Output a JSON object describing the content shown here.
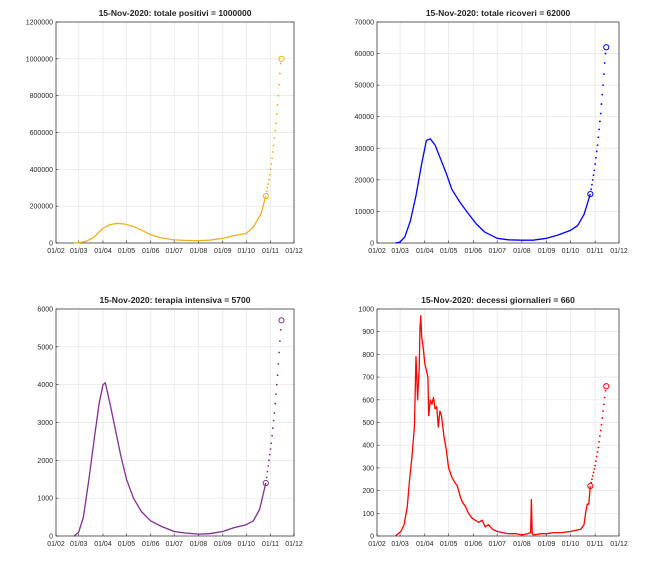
{
  "chart_data": [
    {
      "type": "line",
      "title": "15-Nov-2020: totale positivi = 1000000",
      "color": "#edb120",
      "xticks": [
        "01/02",
        "01/03",
        "01/04",
        "01/05",
        "01/06",
        "01/07",
        "01/08",
        "01/09",
        "01/10",
        "01/11",
        "01/12"
      ],
      "yticks": [
        "0",
        "200000",
        "400000",
        "600000",
        "800000",
        "1000000",
        "1200000"
      ],
      "ylim": [
        0,
        1200000
      ],
      "grid": true,
      "series": [
        {
          "style": "solid",
          "x": [
            "2020-02-24",
            "2020-03-01",
            "2020-03-10",
            "2020-03-20",
            "2020-04-01",
            "2020-04-10",
            "2020-04-19",
            "2020-04-28",
            "2020-05-10",
            "2020-05-20",
            "2020-06-01",
            "2020-06-15",
            "2020-07-01",
            "2020-07-15",
            "2020-08-01",
            "2020-08-15",
            "2020-09-01",
            "2020-09-15",
            "2020-10-01",
            "2020-10-10",
            "2020-10-20",
            "2020-10-26"
          ],
          "y": [
            0,
            1500,
            8000,
            30000,
            80000,
            100000,
            107000,
            103000,
            90000,
            70000,
            45000,
            27000,
            17000,
            14000,
            13000,
            15000,
            25000,
            40000,
            52000,
            85000,
            160000,
            255000
          ]
        },
        {
          "style": "dotted",
          "x": [
            "2020-10-27",
            "2020-10-28",
            "2020-10-29",
            "2020-10-30",
            "2020-10-31",
            "2020-11-01",
            "2020-11-02",
            "2020-11-03",
            "2020-11-04",
            "2020-11-05",
            "2020-11-06",
            "2020-11-07",
            "2020-11-08",
            "2020-11-09",
            "2020-11-10",
            "2020-11-11",
            "2020-11-12",
            "2020-11-13",
            "2020-11-14"
          ],
          "y": [
            280000,
            300000,
            320000,
            345000,
            370000,
            400000,
            430000,
            460000,
            495000,
            530000,
            570000,
            610000,
            650000,
            700000,
            750000,
            800000,
            860000,
            920000,
            975000
          ]
        }
      ],
      "markers": [
        {
          "x": "2020-10-26",
          "y": 255000
        },
        {
          "x": "2020-11-15",
          "y": 1000000
        }
      ]
    },
    {
      "type": "line",
      "title": "15-Nov-2020: totale ricoveri = 62000",
      "color": "#0000ff",
      "xticks": [
        "01/02",
        "01/03",
        "01/04",
        "01/05",
        "01/06",
        "01/07",
        "01/08",
        "01/09",
        "01/10",
        "01/11",
        "01/12"
      ],
      "yticks": [
        "0",
        "10000",
        "20000",
        "30000",
        "40000",
        "50000",
        "60000",
        "70000"
      ],
      "ylim": [
        0,
        70000
      ],
      "grid": true,
      "series": [
        {
          "style": "solid",
          "x": [
            "2020-02-24",
            "2020-03-01",
            "2020-03-07",
            "2020-03-14",
            "2020-03-21",
            "2020-03-28",
            "2020-04-03",
            "2020-04-08",
            "2020-04-14",
            "2020-04-21",
            "2020-04-28",
            "2020-05-05",
            "2020-05-15",
            "2020-05-25",
            "2020-06-05",
            "2020-06-15",
            "2020-07-01",
            "2020-07-15",
            "2020-08-01",
            "2020-08-15",
            "2020-09-01",
            "2020-09-15",
            "2020-10-01",
            "2020-10-10",
            "2020-10-18",
            "2020-10-26"
          ],
          "y": [
            0,
            300,
            2000,
            7000,
            15000,
            25000,
            32500,
            33000,
            31000,
            26500,
            22000,
            17000,
            13000,
            9500,
            6000,
            3500,
            1500,
            1000,
            900,
            900,
            1500,
            2500,
            4000,
            5500,
            9000,
            15500
          ]
        },
        {
          "style": "dotted",
          "x": [
            "2020-10-27",
            "2020-10-28",
            "2020-10-29",
            "2020-10-30",
            "2020-10-31",
            "2020-11-01",
            "2020-11-02",
            "2020-11-03",
            "2020-11-04",
            "2020-11-05",
            "2020-11-06",
            "2020-11-07",
            "2020-11-08",
            "2020-11-09",
            "2020-11-10",
            "2020-11-11",
            "2020-11-12",
            "2020-11-13",
            "2020-11-14"
          ],
          "y": [
            17000,
            18500,
            20000,
            21500,
            23000,
            25000,
            27000,
            29000,
            31000,
            33500,
            36000,
            38500,
            41000,
            44000,
            47000,
            50000,
            53500,
            57000,
            60000
          ]
        }
      ],
      "markers": [
        {
          "x": "2020-10-26",
          "y": 15500
        },
        {
          "x": "2020-11-15",
          "y": 62000
        }
      ]
    },
    {
      "type": "line",
      "title": "15-Nov-2020: terapia intensiva = 5700",
      "color": "#7e2f8e",
      "xticks": [
        "01/02",
        "01/03",
        "01/04",
        "01/05",
        "01/06",
        "01/07",
        "01/08",
        "01/09",
        "01/10",
        "01/11",
        "01/12"
      ],
      "yticks": [
        "0",
        "1000",
        "2000",
        "3000",
        "4000",
        "5000",
        "6000"
      ],
      "ylim": [
        0,
        6000
      ],
      "grid": true,
      "series": [
        {
          "style": "solid",
          "x": [
            "2020-02-24",
            "2020-03-01",
            "2020-03-07",
            "2020-03-14",
            "2020-03-21",
            "2020-03-27",
            "2020-04-01",
            "2020-04-04",
            "2020-04-10",
            "2020-04-17",
            "2020-04-24",
            "2020-05-01",
            "2020-05-10",
            "2020-05-20",
            "2020-06-01",
            "2020-06-15",
            "2020-07-01",
            "2020-07-15",
            "2020-08-01",
            "2020-08-15",
            "2020-09-01",
            "2020-09-15",
            "2020-10-01",
            "2020-10-10",
            "2020-10-18",
            "2020-10-26"
          ],
          "y": [
            0,
            100,
            500,
            1500,
            2600,
            3500,
            4000,
            4050,
            3500,
            2800,
            2100,
            1500,
            1000,
            650,
            400,
            250,
            120,
            80,
            50,
            60,
            120,
            220,
            300,
            400,
            700,
            1400
          ]
        },
        {
          "style": "dotted",
          "x": [
            "2020-10-27",
            "2020-10-28",
            "2020-10-29",
            "2020-10-30",
            "2020-10-31",
            "2020-11-01",
            "2020-11-02",
            "2020-11-03",
            "2020-11-04",
            "2020-11-05",
            "2020-11-06",
            "2020-11-07",
            "2020-11-08",
            "2020-11-09",
            "2020-11-10",
            "2020-11-11",
            "2020-11-12",
            "2020-11-13",
            "2020-11-14"
          ],
          "y": [
            1550,
            1700,
            1850,
            2000,
            2150,
            2300,
            2450,
            2650,
            2850,
            3050,
            3250,
            3500,
            3750,
            4000,
            4250,
            4550,
            4850,
            5150,
            5450
          ]
        }
      ],
      "markers": [
        {
          "x": "2020-10-26",
          "y": 1400
        },
        {
          "x": "2020-11-15",
          "y": 5700
        }
      ]
    },
    {
      "type": "line",
      "title": "15-Nov-2020: decessi giornalieri = 660",
      "color": "#ff0000",
      "xticks": [
        "01/02",
        "01/03",
        "01/04",
        "01/05",
        "01/06",
        "01/07",
        "01/08",
        "01/09",
        "01/10",
        "01/11",
        "01/12"
      ],
      "yticks": [
        "0",
        "100",
        "200",
        "300",
        "400",
        "500",
        "600",
        "700",
        "800",
        "900",
        "1000"
      ],
      "ylim": [
        0,
        1000
      ],
      "grid": true,
      "series": [
        {
          "style": "solid",
          "x": [
            "2020-02-24",
            "2020-03-02",
            "2020-03-06",
            "2020-03-10",
            "2020-03-13",
            "2020-03-16",
            "2020-03-19",
            "2020-03-21",
            "2020-03-23",
            "2020-03-25",
            "2020-03-26",
            "2020-03-27",
            "2020-03-28",
            "2020-03-30",
            "2020-04-01",
            "2020-04-03",
            "2020-04-05",
            "2020-04-06",
            "2020-04-08",
            "2020-04-10",
            "2020-04-12",
            "2020-04-14",
            "2020-04-16",
            "2020-04-18",
            "2020-04-20",
            "2020-04-22",
            "2020-04-25",
            "2020-04-28",
            "2020-05-01",
            "2020-05-05",
            "2020-05-08",
            "2020-05-12",
            "2020-05-15",
            "2020-05-18",
            "2020-05-22",
            "2020-05-26",
            "2020-05-30",
            "2020-06-03",
            "2020-06-08",
            "2020-06-12",
            "2020-06-16",
            "2020-06-20",
            "2020-06-25",
            "2020-07-01",
            "2020-07-08",
            "2020-07-15",
            "2020-07-25",
            "2020-08-01",
            "2020-08-08",
            "2020-08-12",
            "2020-08-13",
            "2020-08-14",
            "2020-08-16",
            "2020-08-25",
            "2020-09-01",
            "2020-09-10",
            "2020-09-20",
            "2020-10-01",
            "2020-10-08",
            "2020-10-14",
            "2020-10-18",
            "2020-10-20",
            "2020-10-22",
            "2020-10-24",
            "2020-10-26"
          ],
          "y": [
            0,
            20,
            50,
            130,
            250,
            350,
            480,
            790,
            600,
            740,
            920,
            970,
            880,
            830,
            760,
            730,
            700,
            530,
            600,
            580,
            610,
            560,
            570,
            480,
            550,
            530,
            440,
            380,
            300,
            260,
            240,
            220,
            180,
            150,
            130,
            100,
            80,
            70,
            60,
            70,
            40,
            50,
            30,
            20,
            15,
            10,
            10,
            5,
            10,
            15,
            160,
            10,
            5,
            10,
            10,
            15,
            15,
            20,
            25,
            30,
            50,
            100,
            140,
            140,
            220
          ]
        },
        {
          "style": "dotted",
          "x": [
            "2020-10-27",
            "2020-10-28",
            "2020-10-29",
            "2020-10-30",
            "2020-10-31",
            "2020-11-01",
            "2020-11-02",
            "2020-11-03",
            "2020-11-04",
            "2020-11-05",
            "2020-11-06",
            "2020-11-07",
            "2020-11-08",
            "2020-11-09",
            "2020-11-10",
            "2020-11-11",
            "2020-11-12",
            "2020-11-13",
            "2020-11-14"
          ],
          "y": [
            235,
            250,
            265,
            280,
            295,
            310,
            330,
            350,
            370,
            390,
            415,
            440,
            465,
            490,
            520,
            550,
            580,
            610,
            640
          ]
        }
      ],
      "markers": [
        {
          "x": "2020-10-26",
          "y": 220
        },
        {
          "x": "2020-11-15",
          "y": 660
        }
      ]
    }
  ]
}
